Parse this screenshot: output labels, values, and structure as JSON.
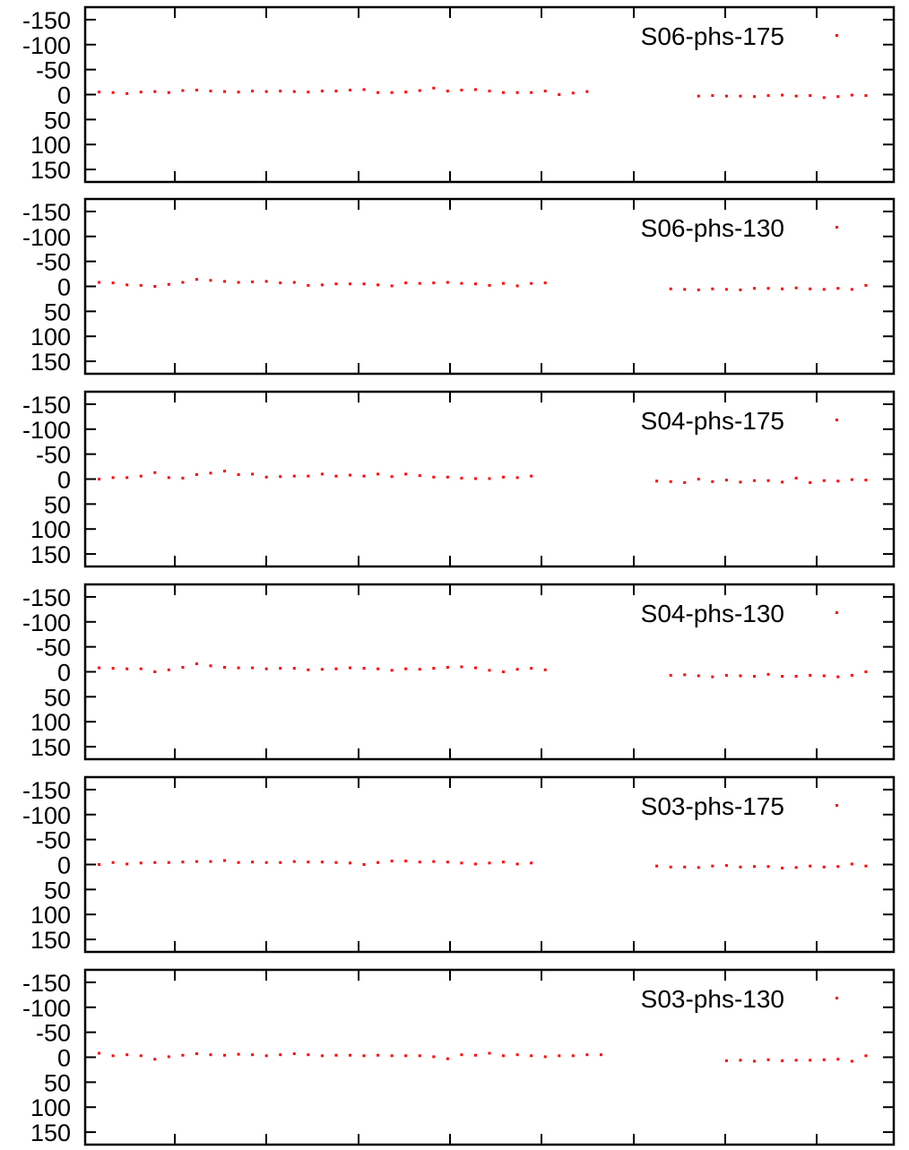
{
  "chart_data": [
    {
      "type": "scatter",
      "legend": "S06-phs-175",
      "color": "#ff0000",
      "ylim": [
        -175,
        175
      ],
      "y_inverted": true,
      "yticks": [
        -150,
        -100,
        -50,
        0,
        50,
        100,
        150
      ],
      "x": [
        1,
        2,
        3,
        4,
        5,
        6,
        7,
        8,
        9,
        10,
        11,
        12,
        13,
        14,
        15,
        16,
        17,
        18,
        19,
        20,
        21,
        22,
        23,
        24,
        25,
        26,
        27,
        28,
        29,
        30,
        31,
        32,
        33,
        34,
        35,
        36,
        37,
        38,
        39,
        40,
        41,
        42,
        43,
        44,
        45,
        46,
        47,
        48,
        49,
        50,
        51,
        52,
        53,
        54,
        55,
        56
      ],
      "y": [
        -5,
        -4,
        -2,
        -5,
        -6,
        -4,
        -8,
        -9,
        -7,
        -6,
        -5,
        -7,
        -6,
        -7,
        -6,
        -5,
        -7,
        -7,
        -9,
        -10,
        -4,
        -4,
        -5,
        -8,
        -13,
        -7,
        -9,
        -10,
        -7,
        -4,
        -4,
        -4,
        -7,
        0,
        -3,
        -6,
        null,
        null,
        null,
        null,
        null,
        null,
        null,
        3,
        2,
        3,
        3,
        4,
        2,
        1,
        3,
        2,
        6,
        4,
        1,
        2
      ]
    },
    {
      "type": "scatter",
      "legend": "S06-phs-130",
      "color": "#ff0000",
      "ylim": [
        -175,
        175
      ],
      "y_inverted": true,
      "yticks": [
        -150,
        -100,
        -50,
        0,
        50,
        100,
        150
      ],
      "x": [
        1,
        2,
        3,
        4,
        5,
        6,
        7,
        8,
        9,
        10,
        11,
        12,
        13,
        14,
        15,
        16,
        17,
        18,
        19,
        20,
        21,
        22,
        23,
        24,
        25,
        26,
        27,
        28,
        29,
        30,
        31,
        32,
        33,
        34,
        35,
        36,
        37,
        38,
        39,
        40,
        41,
        42,
        43,
        44,
        45,
        46,
        47,
        48,
        49,
        50,
        51,
        52,
        53,
        54,
        55,
        56
      ],
      "y": [
        -8,
        -7,
        -3,
        -2,
        0,
        -4,
        -8,
        -14,
        -12,
        -10,
        -8,
        -9,
        -10,
        -7,
        -8,
        -2,
        -3,
        -5,
        -5,
        -5,
        -3,
        -1,
        -7,
        -6,
        -7,
        -8,
        -6,
        -5,
        -2,
        -6,
        -1,
        -6,
        -7,
        null,
        null,
        null,
        null,
        null,
        null,
        null,
        null,
        5,
        6,
        7,
        5,
        6,
        7,
        4,
        4,
        5,
        3,
        5,
        6,
        4,
        6,
        -2
      ]
    },
    {
      "type": "scatter",
      "legend": "S04-phs-175",
      "color": "#ff0000",
      "ylim": [
        -175,
        175
      ],
      "y_inverted": true,
      "yticks": [
        -150,
        -100,
        -50,
        0,
        50,
        100,
        150
      ],
      "x": [
        1,
        2,
        3,
        4,
        5,
        6,
        7,
        8,
        9,
        10,
        11,
        12,
        13,
        14,
        15,
        16,
        17,
        18,
        19,
        20,
        21,
        22,
        23,
        24,
        25,
        26,
        27,
        28,
        29,
        30,
        31,
        32,
        33,
        34,
        35,
        36,
        37,
        38,
        39,
        40,
        41,
        42,
        43,
        44,
        45,
        46,
        47,
        48,
        49,
        50,
        51,
        52,
        53,
        54,
        55,
        56
      ],
      "y": [
        0,
        -3,
        -3,
        -6,
        -13,
        -3,
        -2,
        -9,
        -12,
        -16,
        -9,
        -10,
        -4,
        -5,
        -6,
        -6,
        -10,
        -6,
        -8,
        -6,
        -10,
        -5,
        -10,
        -7,
        -4,
        -4,
        -2,
        -1,
        -1,
        -4,
        -3,
        -6,
        null,
        null,
        null,
        null,
        null,
        null,
        null,
        null,
        4,
        5,
        7,
        0,
        5,
        2,
        6,
        3,
        3,
        6,
        -2,
        7,
        3,
        4,
        1,
        2
      ]
    },
    {
      "type": "scatter",
      "legend": "S04-phs-130",
      "color": "#ff0000",
      "ylim": [
        -175,
        175
      ],
      "y_inverted": true,
      "yticks": [
        -150,
        -100,
        -50,
        0,
        50,
        100,
        150
      ],
      "x": [
        1,
        2,
        3,
        4,
        5,
        6,
        7,
        8,
        9,
        10,
        11,
        12,
        13,
        14,
        15,
        16,
        17,
        18,
        19,
        20,
        21,
        22,
        23,
        24,
        25,
        26,
        27,
        28,
        29,
        30,
        31,
        32,
        33,
        34,
        35,
        36,
        37,
        38,
        39,
        40,
        41,
        42,
        43,
        44,
        45,
        46,
        47,
        48,
        49,
        50,
        51,
        52,
        53,
        54,
        55,
        56
      ],
      "y": [
        -8,
        -7,
        -6,
        -6,
        0,
        -4,
        -9,
        -16,
        -12,
        -9,
        -8,
        -8,
        -6,
        -7,
        -7,
        -4,
        -5,
        -6,
        -8,
        -7,
        -6,
        -3,
        -6,
        -5,
        -7,
        -9,
        -10,
        -8,
        -3,
        0,
        -5,
        -7,
        -4,
        null,
        null,
        null,
        null,
        null,
        null,
        null,
        null,
        7,
        6,
        8,
        10,
        7,
        8,
        9,
        5,
        9,
        9,
        7,
        8,
        10,
        7,
        0
      ]
    },
    {
      "type": "scatter",
      "legend": "S03-phs-175",
      "color": "#ff0000",
      "ylim": [
        -175,
        175
      ],
      "y_inverted": true,
      "yticks": [
        -150,
        -100,
        -50,
        0,
        50,
        100,
        150
      ],
      "x": [
        1,
        2,
        3,
        4,
        5,
        6,
        7,
        8,
        9,
        10,
        11,
        12,
        13,
        14,
        15,
        16,
        17,
        18,
        19,
        20,
        21,
        22,
        23,
        24,
        25,
        26,
        27,
        28,
        29,
        30,
        31,
        32,
        33,
        34,
        35,
        36,
        37,
        38,
        39,
        40,
        41,
        42,
        43,
        44,
        45,
        46,
        47,
        48,
        49,
        50,
        51,
        52,
        53,
        54,
        55,
        56
      ],
      "y": [
        0,
        -4,
        -1,
        -3,
        -4,
        -4,
        -5,
        -6,
        -6,
        -8,
        -4,
        -5,
        -4,
        -4,
        -6,
        -5,
        -5,
        -4,
        -3,
        0,
        -4,
        -7,
        -7,
        -5,
        -6,
        -5,
        -3,
        -1,
        -3,
        -5,
        -1,
        -3,
        null,
        null,
        null,
        null,
        null,
        null,
        null,
        null,
        3,
        5,
        5,
        6,
        3,
        2,
        5,
        4,
        4,
        7,
        6,
        3,
        5,
        4,
        -1,
        3
      ]
    },
    {
      "type": "scatter",
      "legend": "S03-phs-130",
      "color": "#ff0000",
      "ylim": [
        -175,
        175
      ],
      "y_inverted": true,
      "yticks": [
        -150,
        -100,
        -50,
        0,
        50,
        100,
        150
      ],
      "x": [
        1,
        2,
        3,
        4,
        5,
        6,
        7,
        8,
        9,
        10,
        11,
        12,
        13,
        14,
        15,
        16,
        17,
        18,
        19,
        20,
        21,
        22,
        23,
        24,
        25,
        26,
        27,
        28,
        29,
        30,
        31,
        32,
        33,
        34,
        35,
        36,
        37,
        38,
        39,
        40,
        41,
        42,
        43,
        44,
        45,
        46,
        47,
        48,
        49,
        50,
        51,
        52,
        53,
        54,
        55,
        56
      ],
      "y": [
        -8,
        -3,
        -5,
        -3,
        4,
        -1,
        -4,
        -7,
        -5,
        -4,
        -6,
        -5,
        -3,
        -5,
        -7,
        -5,
        -3,
        -4,
        -4,
        -3,
        -4,
        -3,
        -3,
        -3,
        -1,
        3,
        -5,
        -4,
        -8,
        -3,
        -5,
        -3,
        -1,
        -3,
        -3,
        -5,
        -5,
        null,
        null,
        null,
        null,
        null,
        null,
        null,
        null,
        7,
        6,
        8,
        5,
        7,
        6,
        6,
        5,
        4,
        8,
        -3
      ]
    }
  ]
}
